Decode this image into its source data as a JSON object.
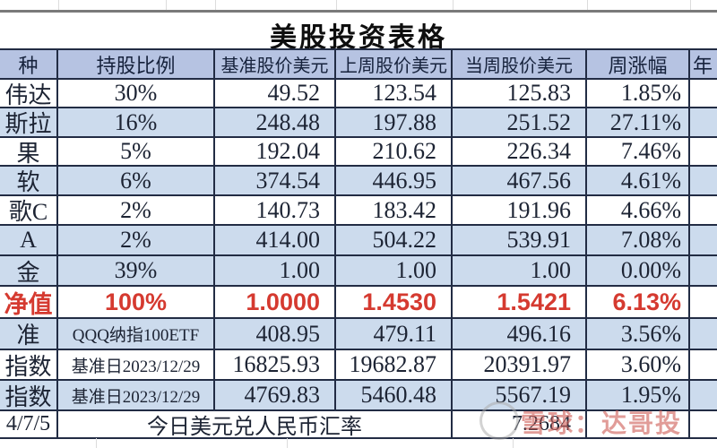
{
  "title": "美股投资表格",
  "watermark": {
    "text": "雪球：达哥投"
  },
  "table": {
    "headers": [
      "种",
      "持股比例",
      "基准股价美元",
      "上周股价美元",
      "当周股价美元",
      "周涨幅",
      "年"
    ],
    "rows": [
      {
        "name": "伟达",
        "ratio": "30%",
        "base": "49.52",
        "last": "123.54",
        "current": "125.83",
        "change": "1.85%",
        "shade": false,
        "highlight": false
      },
      {
        "name": "斯拉",
        "ratio": "16%",
        "base": "248.48",
        "last": "197.88",
        "current": "251.52",
        "change": "27.11%",
        "shade": true,
        "highlight": false
      },
      {
        "name": "果",
        "ratio": "5%",
        "base": "192.04",
        "last": "210.62",
        "current": "226.34",
        "change": "7.46%",
        "shade": false,
        "highlight": false
      },
      {
        "name": "软",
        "ratio": "6%",
        "base": "374.54",
        "last": "446.95",
        "current": "467.56",
        "change": "4.61%",
        "shade": true,
        "highlight": false
      },
      {
        "name": "歌C",
        "ratio": "2%",
        "base": "140.73",
        "last": "183.42",
        "current": "191.96",
        "change": "4.66%",
        "shade": false,
        "highlight": false
      },
      {
        "name": "A",
        "ratio": "2%",
        "base": "414.00",
        "last": "504.22",
        "current": "539.91",
        "change": "7.08%",
        "shade": true,
        "highlight": false
      },
      {
        "name": "金",
        "ratio": "39%",
        "base": "1.00",
        "last": "1.00",
        "current": "1.00",
        "change": "0.00%",
        "shade": true,
        "highlight": false
      },
      {
        "name": "净值",
        "ratio": "100%",
        "base": "1.0000",
        "last": "1.4530",
        "current": "1.5421",
        "change": "6.13%",
        "shade": false,
        "highlight": true
      },
      {
        "name": "准",
        "ratio": "QQQ纳指100ETF",
        "base": "408.95",
        "last": "479.11",
        "current": "496.16",
        "change": "3.56%",
        "shade": true,
        "highlight": false
      },
      {
        "name": "指数",
        "ratio": "基准日2023/12/29",
        "base": "16825.93",
        "last": "19682.87",
        "current": "20391.97",
        "change": "3.60%",
        "shade": false,
        "highlight": false
      },
      {
        "name": "指数",
        "ratio": "基准日2023/12/29",
        "base": "4769.83",
        "last": "5460.48",
        "current": "5567.19",
        "change": "1.95%",
        "shade": true,
        "highlight": false
      }
    ],
    "footer": {
      "date": "4/7/5",
      "label": "今日美元兑人民币汇率",
      "rate": "7.2684"
    }
  },
  "colors": {
    "header_bg": "#b6c3e2",
    "shade_bg": "#ccdbed",
    "border": "#222c44",
    "highlight_red": "#d53a30"
  }
}
